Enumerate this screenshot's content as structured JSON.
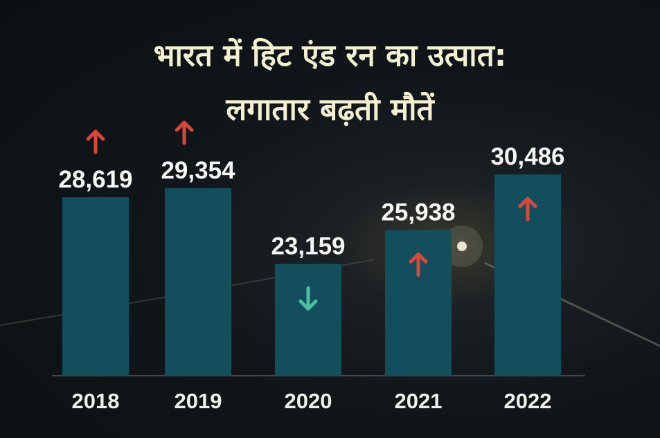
{
  "title_line1": "भारत में हिट एंड रन का उत्पात:",
  "title_line2": "लगातार बढ़ती मौतें",
  "colors": {
    "bar": "#124e5c",
    "up": "#d9483b",
    "down": "#4dbfa6",
    "text": "#f6f6f2",
    "title": "#f4f1d2"
  },
  "chart_data": {
    "type": "bar",
    "title": "भारत में हिट एंड रन का उत्पात: लगातार बढ़ती मौतें",
    "xlabel": "",
    "ylabel": "",
    "categories": [
      "2018",
      "2019",
      "2020",
      "2021",
      "2022"
    ],
    "values": [
      28619,
      29354,
      23159,
      25938,
      30486
    ],
    "labels": [
      "28,619",
      "29,354",
      "23,159",
      "25,938",
      "30,486"
    ],
    "trend": [
      "up",
      "up",
      "down",
      "up",
      "up"
    ],
    "ylim": [
      14000,
      31000
    ],
    "grid": false
  }
}
